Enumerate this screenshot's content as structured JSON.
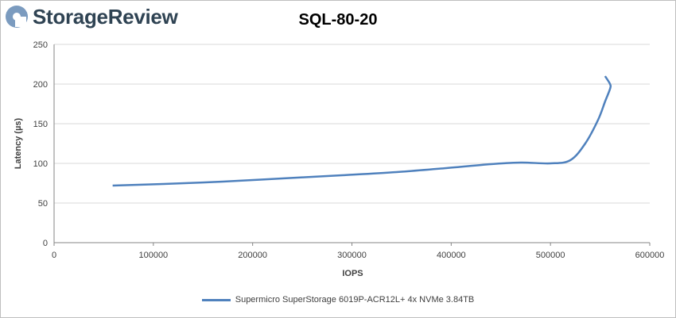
{
  "brand": {
    "name": "StorageReview",
    "icon": "storagereview-logo-icon"
  },
  "chart_data": {
    "type": "line",
    "title": "SQL-80-20",
    "xlabel": "IOPS",
    "ylabel": "Latency (µs)",
    "xlim": [
      0,
      600000
    ],
    "ylim": [
      0,
      250
    ],
    "xticks": [
      "0",
      "100000",
      "200000",
      "300000",
      "400000",
      "500000",
      "600000"
    ],
    "yticks": [
      "0",
      "50",
      "100",
      "150",
      "200",
      "250"
    ],
    "grid": "horizontal",
    "legend_position": "bottom",
    "series": [
      {
        "name": "Supermicro SuperStorage 6019P-ACR12L+ 4x NVMe 3.84TB",
        "color": "#4f81bd",
        "x": [
          59000,
          110000,
          170000,
          230000,
          290000,
          345000,
          395000,
          440000,
          470000,
          500000,
          520000,
          535000,
          548000,
          555000,
          560000,
          560000,
          555000
        ],
        "y": [
          72,
          74,
          77,
          81,
          85,
          89,
          94,
          99,
          101,
          100,
          104,
          125,
          155,
          178,
          194,
          200,
          210
        ]
      }
    ]
  }
}
